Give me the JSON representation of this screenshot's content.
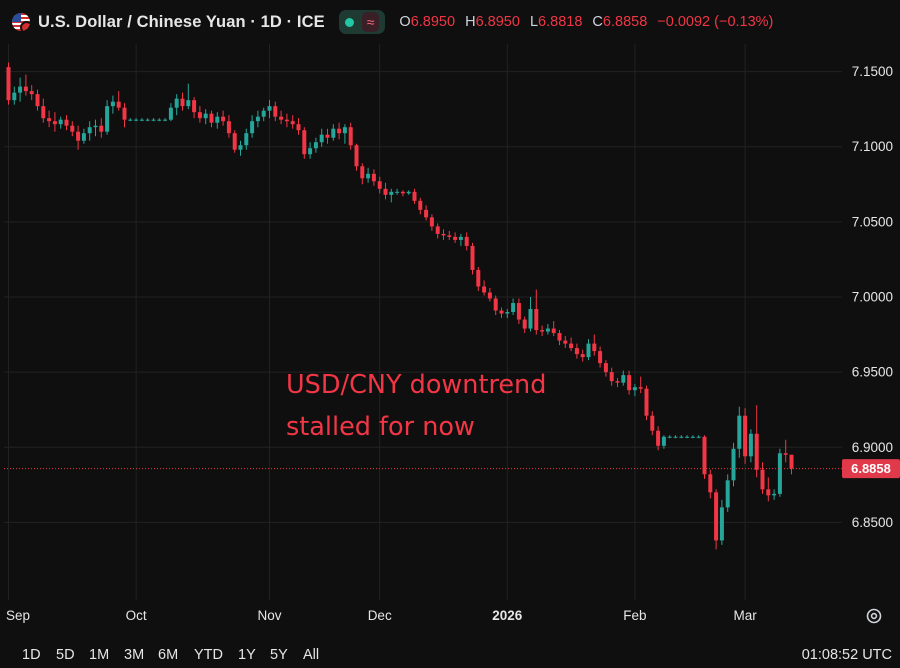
{
  "header": {
    "title": "U.S. Dollar / Chinese Yuan · 1D · ICE",
    "ohlc": [
      {
        "k": "O",
        "v": "6.8950"
      },
      {
        "k": "H",
        "v": "6.8950"
      },
      {
        "k": "L",
        "v": "6.8818"
      },
      {
        "k": "C",
        "v": "6.8858"
      }
    ],
    "change": "−0.0092 (−0.13%)"
  },
  "annotation": [
    "USD/CNY downtrend",
    "stalled for now"
  ],
  "price_label": "6.8858",
  "colors": {
    "up": "#26a69a",
    "down": "#f23645",
    "annotation": "#f23645",
    "bg": "#0f0f0f",
    "grid": "#222222"
  },
  "footer": {
    "ranges": [
      "1D",
      "5D",
      "1M",
      "3M",
      "6M",
      "YTD",
      "1Y",
      "5Y",
      "All"
    ],
    "clock": "01:08:52 UTC"
  },
  "chart_data": {
    "type": "candlestick",
    "ylim": [
      6.805,
      7.16
    ],
    "yticks": [
      "7.1500",
      "7.1000",
      "7.0500",
      "7.0000",
      "6.9500",
      "6.9000",
      "6.8500"
    ],
    "ytick_values": [
      7.15,
      7.1,
      7.05,
      7.0,
      6.95,
      6.9,
      6.85
    ],
    "x_labels": [
      {
        "label": "Sep",
        "index": 0
      },
      {
        "label": "Oct",
        "index": 22
      },
      {
        "label": "Nov",
        "index": 45
      },
      {
        "label": "Dec",
        "index": 64
      },
      {
        "label": "2026",
        "index": 86
      },
      {
        "label": "Feb",
        "index": 108
      },
      {
        "label": "Mar",
        "index": 127
      }
    ],
    "last_close": 6.8858,
    "candles": [
      [
        7.153,
        7.156,
        7.128,
        7.131
      ],
      [
        7.131,
        7.14,
        7.128,
        7.136
      ],
      [
        7.136,
        7.146,
        7.13,
        7.14
      ],
      [
        7.14,
        7.148,
        7.134,
        7.137
      ],
      [
        7.137,
        7.141,
        7.131,
        7.135
      ],
      [
        7.135,
        7.138,
        7.124,
        7.127
      ],
      [
        7.127,
        7.132,
        7.116,
        7.119
      ],
      [
        7.119,
        7.124,
        7.113,
        7.117
      ],
      [
        7.117,
        7.123,
        7.11,
        7.115
      ],
      [
        7.115,
        7.12,
        7.112,
        7.118
      ],
      [
        7.118,
        7.121,
        7.111,
        7.114
      ],
      [
        7.114,
        7.117,
        7.107,
        7.11
      ],
      [
        7.11,
        7.114,
        7.098,
        7.104
      ],
      [
        7.104,
        7.112,
        7.102,
        7.109
      ],
      [
        7.109,
        7.117,
        7.104,
        7.113
      ],
      [
        7.113,
        7.118,
        7.107,
        7.114
      ],
      [
        7.114,
        7.119,
        7.106,
        7.11
      ],
      [
        7.11,
        7.131,
        7.108,
        7.127
      ],
      [
        7.127,
        7.134,
        7.122,
        7.13
      ],
      [
        7.13,
        7.137,
        7.124,
        7.126
      ],
      [
        7.126,
        7.129,
        7.113,
        7.118
      ],
      [
        7.118,
        7.119,
        7.117,
        7.118
      ],
      [
        7.118,
        7.119,
        7.117,
        7.118
      ],
      [
        7.118,
        7.119,
        7.117,
        7.118
      ],
      [
        7.118,
        7.119,
        7.117,
        7.118
      ],
      [
        7.118,
        7.119,
        7.117,
        7.118
      ],
      [
        7.118,
        7.119,
        7.117,
        7.118
      ],
      [
        7.118,
        7.119,
        7.117,
        7.118
      ],
      [
        7.118,
        7.129,
        7.117,
        7.126
      ],
      [
        7.126,
        7.135,
        7.121,
        7.132
      ],
      [
        7.132,
        7.136,
        7.124,
        7.127
      ],
      [
        7.127,
        7.142,
        7.125,
        7.131
      ],
      [
        7.131,
        7.133,
        7.119,
        7.123
      ],
      [
        7.123,
        7.127,
        7.116,
        7.119
      ],
      [
        7.119,
        7.125,
        7.115,
        7.122
      ],
      [
        7.122,
        7.124,
        7.113,
        7.116
      ],
      [
        7.116,
        7.123,
        7.112,
        7.12
      ],
      [
        7.12,
        7.124,
        7.114,
        7.117
      ],
      [
        7.117,
        7.121,
        7.106,
        7.109
      ],
      [
        7.109,
        7.111,
        7.096,
        7.098
      ],
      [
        7.098,
        7.104,
        7.094,
        7.101
      ],
      [
        7.101,
        7.112,
        7.098,
        7.109
      ],
      [
        7.109,
        7.121,
        7.106,
        7.117
      ],
      [
        7.117,
        7.124,
        7.113,
        7.12
      ],
      [
        7.12,
        7.126,
        7.117,
        7.124
      ],
      [
        7.124,
        7.131,
        7.119,
        7.127
      ],
      [
        7.127,
        7.13,
        7.117,
        7.12
      ],
      [
        7.12,
        7.124,
        7.115,
        7.118
      ],
      [
        7.118,
        7.122,
        7.113,
        7.117
      ],
      [
        7.117,
        7.121,
        7.112,
        7.115
      ],
      [
        7.115,
        7.119,
        7.108,
        7.111
      ],
      [
        7.111,
        7.113,
        7.092,
        7.095
      ],
      [
        7.095,
        7.103,
        7.092,
        7.099
      ],
      [
        7.099,
        7.106,
        7.096,
        7.103
      ],
      [
        7.103,
        7.112,
        7.1,
        7.108
      ],
      [
        7.108,
        7.112,
        7.102,
        7.106
      ],
      [
        7.106,
        7.115,
        7.104,
        7.112
      ],
      [
        7.112,
        7.116,
        7.105,
        7.109
      ],
      [
        7.109,
        7.115,
        7.102,
        7.113
      ],
      [
        7.113,
        7.116,
        7.098,
        7.101
      ],
      [
        7.101,
        7.102,
        7.084,
        7.087
      ],
      [
        7.087,
        7.089,
        7.075,
        7.079
      ],
      [
        7.079,
        7.086,
        7.076,
        7.082
      ],
      [
        7.082,
        7.085,
        7.074,
        7.077
      ],
      [
        7.077,
        7.08,
        7.069,
        7.072
      ],
      [
        7.072,
        7.076,
        7.065,
        7.068
      ],
      [
        7.068,
        7.072,
        7.063,
        7.07
      ],
      [
        7.07,
        7.072,
        7.068,
        7.07
      ],
      [
        7.07,
        7.071,
        7.067,
        7.069
      ],
      [
        7.069,
        7.071,
        7.068,
        7.07
      ],
      [
        7.07,
        7.072,
        7.062,
        7.064
      ],
      [
        7.064,
        7.066,
        7.055,
        7.058
      ],
      [
        7.058,
        7.061,
        7.051,
        7.053
      ],
      [
        7.053,
        7.055,
        7.044,
        7.047
      ],
      [
        7.047,
        7.049,
        7.039,
        7.042
      ],
      [
        7.042,
        7.045,
        7.038,
        7.041
      ],
      [
        7.041,
        7.044,
        7.038,
        7.04
      ],
      [
        7.04,
        7.043,
        7.036,
        7.038
      ],
      [
        7.038,
        7.042,
        7.034,
        7.04
      ],
      [
        7.04,
        7.043,
        7.031,
        7.034
      ],
      [
        7.034,
        7.036,
        7.015,
        7.018
      ],
      [
        7.018,
        7.02,
        7.004,
        7.007
      ],
      [
        7.007,
        7.011,
        7.001,
        7.003
      ],
      [
        7.003,
        7.006,
        6.997,
        6.999
      ],
      [
        6.999,
        7.001,
        6.988,
        6.991
      ],
      [
        6.991,
        6.993,
        6.986,
        6.989
      ],
      [
        6.989,
        6.992,
        6.986,
        6.99
      ],
      [
        6.99,
        6.999,
        6.988,
        6.996
      ],
      [
        6.996,
        6.999,
        6.982,
        6.985
      ],
      [
        6.985,
        6.987,
        6.976,
        6.979
      ],
      [
        6.979,
        7.0,
        6.977,
        6.992
      ],
      [
        6.992,
        7.005,
        6.975,
        6.978
      ],
      [
        6.978,
        6.981,
        6.974,
        6.977
      ],
      [
        6.977,
        6.982,
        6.975,
        6.979
      ],
      [
        6.979,
        6.984,
        6.974,
        6.976
      ],
      [
        6.976,
        6.978,
        6.968,
        6.971
      ],
      [
        6.971,
        6.974,
        6.966,
        6.969
      ],
      [
        6.969,
        6.973,
        6.964,
        6.966
      ],
      [
        6.966,
        6.969,
        6.959,
        6.962
      ],
      [
        6.962,
        6.965,
        6.957,
        6.96
      ],
      [
        6.96,
        6.972,
        6.958,
        6.969
      ],
      [
        6.969,
        6.975,
        6.961,
        6.964
      ],
      [
        6.964,
        6.967,
        6.953,
        6.956
      ],
      [
        6.956,
        6.958,
        6.947,
        6.95
      ],
      [
        6.95,
        6.953,
        6.941,
        6.944
      ],
      [
        6.944,
        6.946,
        6.94,
        6.943
      ],
      [
        6.943,
        6.951,
        6.941,
        6.948
      ],
      [
        6.948,
        6.951,
        6.935,
        6.938
      ],
      [
        6.938,
        6.942,
        6.934,
        6.94
      ],
      [
        6.94,
        6.947,
        6.936,
        6.939
      ],
      [
        6.939,
        6.941,
        6.918,
        6.921
      ],
      [
        6.921,
        6.924,
        6.908,
        6.911
      ],
      [
        6.911,
        6.914,
        6.898,
        6.901
      ],
      [
        6.901,
        6.908,
        6.899,
        6.907
      ],
      [
        6.907,
        6.908,
        6.906,
        6.907
      ],
      [
        6.907,
        6.908,
        6.906,
        6.907
      ],
      [
        6.907,
        6.908,
        6.906,
        6.907
      ],
      [
        6.907,
        6.908,
        6.906,
        6.907
      ],
      [
        6.907,
        6.908,
        6.906,
        6.907
      ],
      [
        6.907,
        6.908,
        6.906,
        6.907
      ],
      [
        6.907,
        6.908,
        6.879,
        6.882
      ],
      [
        6.882,
        6.885,
        6.866,
        6.87
      ],
      [
        6.87,
        6.872,
        6.832,
        6.838
      ],
      [
        6.838,
        6.865,
        6.835,
        6.86
      ],
      [
        6.86,
        6.882,
        6.857,
        6.878
      ],
      [
        6.878,
        6.903,
        6.874,
        6.899
      ],
      [
        6.899,
        6.927,
        6.893,
        6.921
      ],
      [
        6.921,
        6.926,
        6.889,
        6.894
      ],
      [
        6.894,
        6.912,
        6.89,
        6.909
      ],
      [
        6.909,
        6.928,
        6.88,
        6.885
      ],
      [
        6.885,
        6.89,
        6.869,
        6.872
      ],
      [
        6.872,
        6.88,
        6.864,
        6.868
      ],
      [
        6.868,
        6.872,
        6.865,
        6.869
      ],
      [
        6.869,
        6.899,
        6.867,
        6.896
      ],
      [
        6.896,
        6.905,
        6.89,
        6.895
      ],
      [
        6.895,
        6.895,
        6.882,
        6.8858
      ]
    ]
  }
}
